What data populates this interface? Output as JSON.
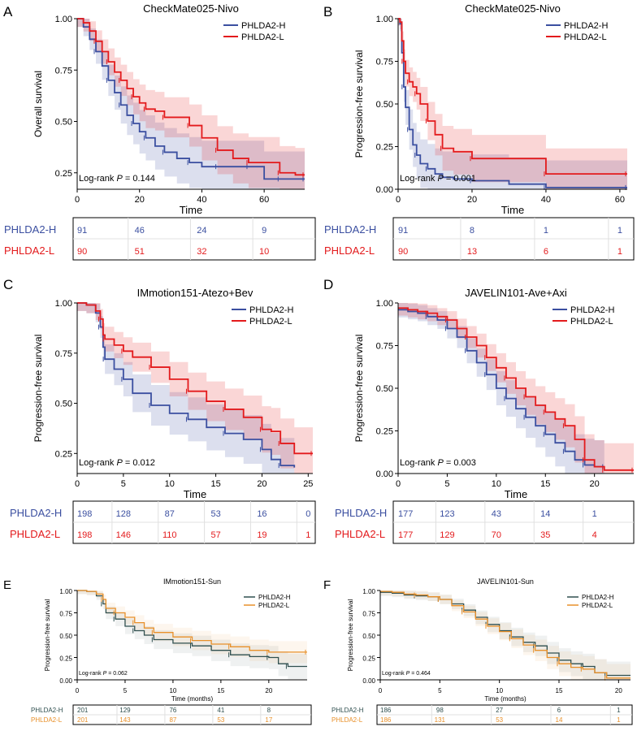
{
  "chart_data": [
    {
      "type": "line",
      "subtype": "kaplan-meier",
      "panel": "A",
      "title": "CheckMate025-Nivo",
      "xlabel": "Time",
      "ylabel": "Overall survival",
      "xticks": [
        0,
        20,
        40,
        60
      ],
      "yticks": [
        "0.25",
        "0.50",
        "0.75",
        "1.00"
      ],
      "xlim": [
        0,
        73
      ],
      "ylim": [
        0.17,
        1.0
      ],
      "annotation_prefix": "Log-rank ",
      "annotation_p": "P",
      "annotation_value": " = 0.144",
      "series": [
        {
          "name": "PHLDA2-H",
          "color": "#3b4fa0",
          "x": [
            0,
            2,
            4,
            6,
            8,
            10,
            12,
            14,
            16,
            18,
            20,
            22,
            25,
            28,
            32,
            36,
            40,
            45,
            50,
            55,
            60,
            65,
            70,
            73
          ],
          "y": [
            1.0,
            0.96,
            0.9,
            0.84,
            0.77,
            0.7,
            0.64,
            0.58,
            0.53,
            0.49,
            0.45,
            0.42,
            0.38,
            0.35,
            0.32,
            0.3,
            0.28,
            0.28,
            0.28,
            0.28,
            0.22,
            0.22,
            0.22,
            0.22
          ]
        },
        {
          "name": "PHLDA2-L",
          "color": "#e31a1c",
          "x": [
            0,
            2,
            4,
            6,
            8,
            10,
            12,
            14,
            16,
            18,
            20,
            22,
            25,
            28,
            32,
            36,
            40,
            45,
            50,
            55,
            60,
            65,
            70,
            73
          ],
          "y": [
            1.0,
            0.98,
            0.94,
            0.89,
            0.84,
            0.79,
            0.74,
            0.7,
            0.66,
            0.62,
            0.59,
            0.56,
            0.55,
            0.52,
            0.52,
            0.48,
            0.42,
            0.36,
            0.32,
            0.3,
            0.3,
            0.25,
            0.24,
            0.24
          ]
        }
      ],
      "risk_table": {
        "times": [
          0,
          20,
          40,
          60
        ],
        "rows": [
          [
            "91",
            "46",
            "24",
            "9"
          ],
          [
            "90",
            "51",
            "32",
            "10"
          ]
        ]
      }
    },
    {
      "type": "line",
      "subtype": "kaplan-meier",
      "panel": "B",
      "title": "CheckMate025-Nivo",
      "xlabel": "Time",
      "ylabel": "Progression-free survival",
      "xticks": [
        0,
        20,
        40,
        60
      ],
      "yticks": [
        "0.00",
        "0.25",
        "0.50",
        "0.75",
        "1.00"
      ],
      "xlim": [
        0,
        62
      ],
      "ylim": [
        0,
        1.0
      ],
      "annotation_prefix": "Log-rank ",
      "annotation_p": "P",
      "annotation_value": " = 0.001",
      "series": [
        {
          "name": "PHLDA2-H",
          "color": "#3b4fa0",
          "x": [
            0,
            0.5,
            1,
            1.5,
            2,
            3,
            4,
            5,
            6,
            8,
            10,
            12,
            15,
            20,
            30,
            40,
            50,
            62
          ],
          "y": [
            1.0,
            0.97,
            0.8,
            0.6,
            0.48,
            0.35,
            0.26,
            0.2,
            0.15,
            0.12,
            0.09,
            0.07,
            0.06,
            0.05,
            0.03,
            0.01,
            0.01,
            0.01
          ]
        },
        {
          "name": "PHLDA2-L",
          "color": "#e31a1c",
          "x": [
            0,
            0.5,
            1,
            1.5,
            2,
            3,
            4,
            5,
            6,
            8,
            10,
            12,
            15,
            20,
            30,
            40,
            50,
            62
          ],
          "y": [
            1.0,
            0.98,
            0.87,
            0.75,
            0.68,
            0.63,
            0.6,
            0.56,
            0.5,
            0.4,
            0.32,
            0.24,
            0.22,
            0.18,
            0.18,
            0.09,
            0.09,
            0.09
          ]
        }
      ],
      "risk_table": {
        "times": [
          0,
          20,
          40,
          60
        ],
        "rows": [
          [
            "91",
            "8",
            "1",
            "1"
          ],
          [
            "90",
            "13",
            "6",
            "1"
          ]
        ]
      }
    },
    {
      "type": "line",
      "subtype": "kaplan-meier",
      "panel": "C",
      "title": "IMmotion151-Atezo+Bev",
      "xlabel": "Time",
      "ylabel": "Progression-free survival",
      "xticks": [
        0,
        5,
        10,
        15,
        20,
        25
      ],
      "yticks": [
        "0.25",
        "0.50",
        "0.75",
        "1.00"
      ],
      "xlim": [
        0,
        25.5
      ],
      "ylim": [
        0.15,
        1.0
      ],
      "annotation_prefix": "Log-rank ",
      "annotation_p": "P",
      "annotation_value": " = 0.012",
      "series": [
        {
          "name": "PHLDA2-H",
          "color": "#3b4fa0",
          "x": [
            0,
            1,
            2,
            2.5,
            2.8,
            3,
            4,
            5,
            6,
            8,
            10,
            12,
            14,
            16,
            18,
            20,
            21,
            22,
            23.5
          ],
          "y": [
            1.0,
            0.99,
            0.95,
            0.88,
            0.78,
            0.72,
            0.67,
            0.62,
            0.55,
            0.49,
            0.45,
            0.42,
            0.38,
            0.35,
            0.32,
            0.27,
            0.22,
            0.19,
            0.18
          ]
        },
        {
          "name": "PHLDA2-L",
          "color": "#e31a1c",
          "x": [
            0,
            1,
            2,
            2.5,
            2.8,
            3,
            4,
            5,
            6,
            8,
            10,
            12,
            14,
            16,
            18,
            20,
            21,
            22,
            23.5,
            25.5
          ],
          "y": [
            1.0,
            0.99,
            0.96,
            0.92,
            0.84,
            0.82,
            0.79,
            0.76,
            0.73,
            0.68,
            0.62,
            0.56,
            0.51,
            0.47,
            0.43,
            0.37,
            0.36,
            0.3,
            0.25,
            0.25
          ]
        }
      ],
      "risk_table": {
        "times": [
          0,
          5,
          10,
          15,
          20,
          25
        ],
        "rows": [
          [
            "198",
            "128",
            "87",
            "53",
            "16",
            "0"
          ],
          [
            "198",
            "146",
            "110",
            "57",
            "19",
            "1"
          ]
        ]
      }
    },
    {
      "type": "line",
      "subtype": "kaplan-meier",
      "panel": "D",
      "title": "JAVELIN101-Ave+Axi",
      "xlabel": "Time",
      "ylabel": "Progression-free survival",
      "xticks": [
        0,
        5,
        10,
        15,
        20
      ],
      "yticks": [
        "0.00",
        "0.25",
        "0.50",
        "0.75",
        "1.00"
      ],
      "xlim": [
        0,
        24
      ],
      "ylim": [
        0,
        1.0
      ],
      "annotation_prefix": "Log-rank ",
      "annotation_p": "P",
      "annotation_value": " = 0.003",
      "series": [
        {
          "name": "PHLDA2-H",
          "color": "#3b4fa0",
          "x": [
            0,
            1,
            2,
            3,
            4,
            5,
            6,
            7,
            8,
            9,
            10,
            11,
            12,
            13,
            14,
            15,
            16,
            17,
            18,
            19,
            20,
            21
          ],
          "y": [
            0.96,
            0.95,
            0.94,
            0.92,
            0.9,
            0.85,
            0.8,
            0.72,
            0.65,
            0.58,
            0.5,
            0.44,
            0.38,
            0.33,
            0.28,
            0.23,
            0.18,
            0.13,
            0.08,
            0.05,
            0.04,
            0.04
          ]
        },
        {
          "name": "PHLDA2-L",
          "color": "#e31a1c",
          "x": [
            0,
            1,
            2,
            3,
            4,
            5,
            6,
            7,
            8,
            9,
            10,
            11,
            12,
            13,
            14,
            15,
            16,
            17,
            18,
            19,
            20,
            21,
            22,
            24
          ],
          "y": [
            0.97,
            0.96,
            0.95,
            0.94,
            0.92,
            0.9,
            0.85,
            0.8,
            0.75,
            0.68,
            0.62,
            0.56,
            0.5,
            0.45,
            0.4,
            0.36,
            0.32,
            0.28,
            0.2,
            0.08,
            0.04,
            0.02,
            0.02,
            0.02
          ]
        }
      ],
      "risk_table": {
        "times": [
          0,
          5,
          10,
          15,
          20
        ],
        "rows": [
          [
            "177",
            "123",
            "43",
            "14",
            "1"
          ],
          [
            "177",
            "129",
            "70",
            "35",
            "4"
          ]
        ]
      }
    },
    {
      "type": "line",
      "subtype": "kaplan-meier",
      "panel": "E",
      "title": "IMmotion151-Sun",
      "xlabel": "Time (months)",
      "ylabel": "Progression-free survival",
      "xticks": [
        0,
        5,
        10,
        15,
        20
      ],
      "yticks": [
        "0.00",
        "0.25",
        "0.50",
        "0.75",
        "1.00"
      ],
      "xlim": [
        0,
        24
      ],
      "ylim": [
        0,
        1.0
      ],
      "annotation_prefix": "Log-rank ",
      "annotation_p": "P",
      "annotation_value": " = 0.062",
      "series": [
        {
          "name": "PHLDA2-H",
          "color": "#2f4f4f",
          "x": [
            0,
            1,
            2,
            2.7,
            3,
            4,
            5,
            6,
            7,
            8,
            10,
            12,
            14,
            16,
            18,
            20,
            21,
            22,
            24
          ],
          "y": [
            1.0,
            0.99,
            0.94,
            0.85,
            0.75,
            0.68,
            0.6,
            0.55,
            0.5,
            0.45,
            0.41,
            0.38,
            0.33,
            0.28,
            0.26,
            0.25,
            0.18,
            0.15,
            0.15
          ]
        },
        {
          "name": "PHLDA2-L",
          "color": "#e8902a",
          "x": [
            0,
            1,
            2,
            2.7,
            3,
            4,
            5,
            6,
            7,
            8,
            10,
            12,
            14,
            16,
            18,
            20,
            22,
            24
          ],
          "y": [
            1.0,
            0.99,
            0.96,
            0.9,
            0.8,
            0.75,
            0.7,
            0.64,
            0.58,
            0.53,
            0.48,
            0.44,
            0.4,
            0.37,
            0.33,
            0.31,
            0.31,
            0.31
          ]
        }
      ],
      "risk_table": {
        "times": [
          0,
          5,
          10,
          15,
          20
        ],
        "rows": [
          [
            "201",
            "129",
            "76",
            "41",
            "8"
          ],
          [
            "201",
            "143",
            "87",
            "53",
            "17"
          ]
        ]
      }
    },
    {
      "type": "line",
      "subtype": "kaplan-meier",
      "panel": "F",
      "title": "JAVELIN101-Sun",
      "xlabel": "Time (months)",
      "ylabel": "Progression-free survival",
      "xticks": [
        0,
        5,
        10,
        15,
        20
      ],
      "yticks": [
        "0.00",
        "0.25",
        "0.50",
        "0.75",
        "1.00"
      ],
      "xlim": [
        0,
        21
      ],
      "ylim": [
        0,
        1.0
      ],
      "annotation_prefix": "Log-rank ",
      "annotation_p": "P",
      "annotation_value": " = 0.464",
      "series": [
        {
          "name": "PHLDA2-H",
          "color": "#2f4f4f",
          "x": [
            0,
            1,
            2,
            3,
            4,
            5,
            6,
            7,
            8,
            9,
            10,
            11,
            12,
            13,
            14,
            15,
            16,
            17,
            18,
            19,
            21
          ],
          "y": [
            0.98,
            0.97,
            0.95,
            0.94,
            0.93,
            0.9,
            0.85,
            0.78,
            0.7,
            0.62,
            0.55,
            0.48,
            0.42,
            0.38,
            0.3,
            0.22,
            0.18,
            0.15,
            0.08,
            0.05,
            0.05
          ]
        },
        {
          "name": "PHLDA2-L",
          "color": "#e8902a",
          "x": [
            0,
            1,
            2,
            3,
            4,
            5,
            6,
            7,
            8,
            9,
            10,
            11,
            12,
            13,
            14,
            15,
            16,
            17,
            18,
            19,
            21
          ],
          "y": [
            0.99,
            0.98,
            0.96,
            0.95,
            0.93,
            0.9,
            0.83,
            0.76,
            0.68,
            0.6,
            0.54,
            0.46,
            0.39,
            0.33,
            0.25,
            0.18,
            0.14,
            0.12,
            0.08,
            0.02,
            0.02
          ]
        }
      ],
      "risk_table": {
        "times": [
          0,
          5,
          10,
          15,
          20
        ],
        "rows": [
          [
            "186",
            "98",
            "27",
            "6",
            "1"
          ],
          [
            "186",
            "131",
            "53",
            "14",
            "1"
          ]
        ]
      }
    }
  ]
}
